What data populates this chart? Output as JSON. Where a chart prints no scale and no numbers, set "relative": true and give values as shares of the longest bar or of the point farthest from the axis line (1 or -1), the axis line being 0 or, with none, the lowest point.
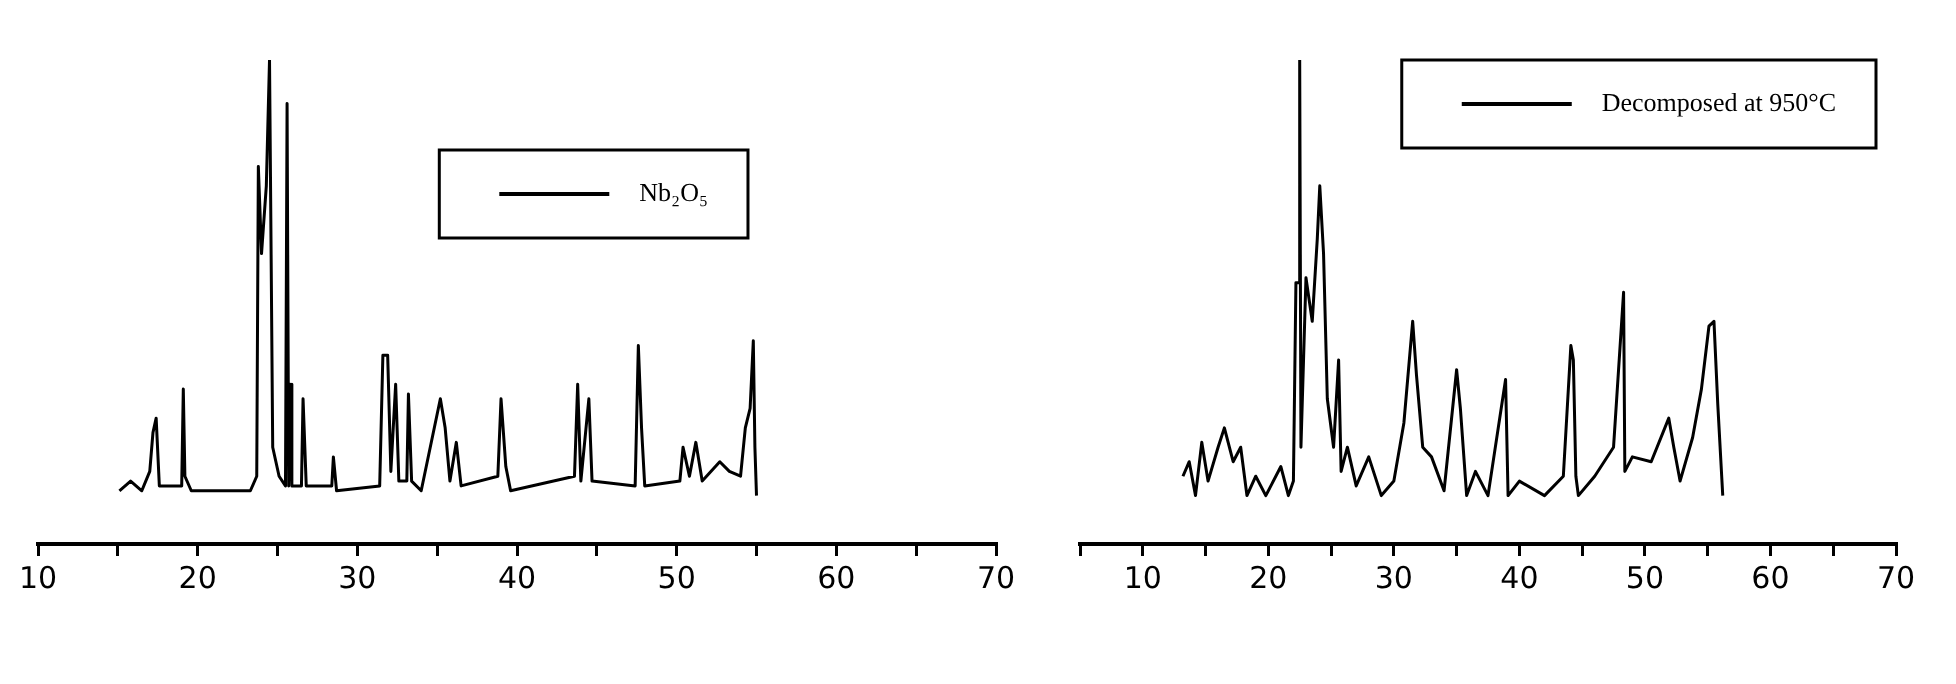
{
  "chart_data": [
    {
      "type": "line",
      "relative": true,
      "legend": "top",
      "xlim": [
        10,
        70
      ],
      "xticks": [
        10,
        {
          "value": 15,
          "label": null
        },
        20,
        {
          "value": 25,
          "label": null
        },
        30,
        {
          "value": 35,
          "label": null
        },
        40,
        {
          "value": 45,
          "label": null
        },
        50,
        {
          "value": 55,
          "label": null
        },
        60,
        {
          "value": 65,
          "label": null
        },
        70
      ],
      "series": [
        {
          "name": "Nb₂O₅",
          "color": "#000000",
          "x": [
            15.1,
            15.8,
            16.5,
            17.0,
            17.2,
            17.4,
            17.6,
            18.5,
            19.0,
            19.1,
            19.2,
            19.6,
            23.3,
            23.7,
            23.8,
            24.0,
            24.3,
            24.5,
            24.7,
            25.1,
            25.5,
            25.6,
            25.7,
            25.8,
            25.9,
            26.5,
            26.6,
            26.8,
            28.4,
            28.5,
            28.7,
            31.4,
            31.6,
            31.9,
            32.1,
            32.4,
            32.6,
            33.1,
            33.2,
            33.4,
            34.0,
            35.2,
            35.5,
            35.8,
            36.2,
            36.5,
            38.8,
            39.0,
            39.3,
            39.6,
            43.6,
            43.8,
            44.0,
            44.5,
            44.7,
            47.4,
            47.6,
            47.8,
            48.0,
            50.2,
            50.4,
            50.8,
            51.2,
            51.6,
            52.7,
            53.3,
            54.0,
            54.3,
            54.6,
            54.8,
            54.9,
            55.0
          ],
          "values": [
            0.11,
            0.13,
            0.11,
            0.15,
            0.23,
            0.26,
            0.12,
            0.12,
            0.12,
            0.32,
            0.14,
            0.11,
            0.11,
            0.14,
            0.78,
            0.6,
            0.74,
            1.0,
            0.2,
            0.14,
            0.12,
            0.91,
            0.12,
            0.33,
            0.12,
            0.12,
            0.3,
            0.12,
            0.12,
            0.18,
            0.11,
            0.12,
            0.39,
            0.39,
            0.15,
            0.33,
            0.13,
            0.13,
            0.31,
            0.13,
            0.11,
            0.3,
            0.24,
            0.13,
            0.21,
            0.12,
            0.14,
            0.3,
            0.16,
            0.11,
            0.14,
            0.33,
            0.13,
            0.3,
            0.13,
            0.12,
            0.41,
            0.24,
            0.12,
            0.13,
            0.2,
            0.14,
            0.21,
            0.13,
            0.17,
            0.15,
            0.14,
            0.24,
            0.28,
            0.42,
            0.2,
            0.1
          ]
        }
      ]
    },
    {
      "type": "line",
      "relative": true,
      "legend": "top right",
      "xlim": [
        5,
        70
      ],
      "xticks": [
        {
          "value": 5,
          "label": null
        },
        10,
        {
          "value": 15,
          "label": null
        },
        20,
        {
          "value": 25,
          "label": null
        },
        30,
        {
          "value": 35,
          "label": null
        },
        40,
        {
          "value": 45,
          "label": null
        },
        50,
        {
          "value": 55,
          "label": null
        },
        60,
        {
          "value": 65,
          "label": null
        },
        70
      ],
      "series": [
        {
          "name": "Decomposed at 950°C",
          "color": "#000000",
          "x": [
            13.2,
            13.7,
            14.2,
            14.7,
            15.2,
            16.0,
            16.5,
            17.2,
            17.8,
            18.3,
            19.0,
            19.8,
            21.0,
            21.6,
            22.0,
            22.2,
            22.4,
            22.5,
            22.6,
            23.0,
            23.5,
            23.9,
            24.1,
            24.4,
            24.7,
            25.2,
            25.6,
            25.8,
            26.3,
            27.0,
            28.0,
            29.0,
            30.0,
            30.8,
            31.5,
            31.8,
            32.3,
            33.0,
            34.0,
            35.0,
            35.3,
            35.8,
            36.5,
            37.5,
            38.9,
            39.1,
            40.0,
            42.0,
            43.5,
            44.1,
            44.3,
            44.5,
            44.7,
            46.0,
            47.5,
            48.3,
            48.4,
            49.0,
            50.5,
            51.9,
            52.3,
            52.8,
            53.8,
            54.5,
            55.1,
            55.5,
            55.8,
            56.2
          ],
          "values": [
            0.14,
            0.17,
            0.1,
            0.21,
            0.13,
            0.2,
            0.24,
            0.17,
            0.2,
            0.1,
            0.14,
            0.1,
            0.16,
            0.1,
            0.13,
            0.54,
            0.54,
            1.0,
            0.2,
            0.55,
            0.46,
            0.63,
            0.74,
            0.6,
            0.3,
            0.2,
            0.38,
            0.15,
            0.2,
            0.12,
            0.18,
            0.1,
            0.13,
            0.25,
            0.46,
            0.35,
            0.2,
            0.18,
            0.11,
            0.36,
            0.28,
            0.1,
            0.15,
            0.1,
            0.34,
            0.1,
            0.13,
            0.1,
            0.14,
            0.41,
            0.38,
            0.14,
            0.1,
            0.14,
            0.2,
            0.52,
            0.15,
            0.18,
            0.17,
            0.26,
            0.2,
            0.13,
            0.22,
            0.32,
            0.45,
            0.46,
            0.29,
            0.1
          ]
        }
      ]
    }
  ]
}
